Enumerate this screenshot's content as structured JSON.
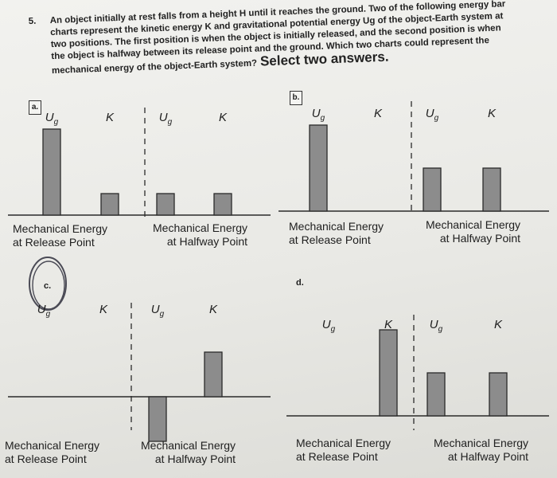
{
  "question": {
    "number": "5.",
    "lines": [
      "An object initially at rest falls from a height H until it reaches the ground. Two of the following energy bar",
      "charts represent the kinetic energy K and gravitational potential energy Ug of the object-Earth system at",
      "two positions. The first position is when the object is initially released, and the second position is when",
      "the object is halfway between its release point and the ground. Which two charts could represent the",
      "mechanical energy of the object-Earth system?"
    ],
    "select_label": "Select two answers."
  },
  "colors": {
    "bar_fill": "#8c8c8c",
    "bar_stroke": "#2a2a2a",
    "axis": "#2a2a2a",
    "annotation_pencil": "#4a4a55"
  },
  "chart_data": [
    {
      "type": "bar",
      "option": "a.",
      "option_boxed": true,
      "series": [
        {
          "categories": [
            "Ug",
            "K"
          ],
          "values": [
            4,
            1
          ],
          "caption": [
            "Mechanical Energy",
            "at Release Point"
          ]
        },
        {
          "categories": [
            "Ug",
            "K"
          ],
          "values": [
            1,
            1
          ],
          "caption": [
            "Mechanical Energy",
            "at Halfway Point"
          ]
        }
      ],
      "ylim": [
        -2,
        4.5
      ],
      "baseline": 0
    },
    {
      "type": "bar",
      "option": "b.",
      "option_boxed": true,
      "series": [
        {
          "categories": [
            "Ug",
            "K"
          ],
          "values": [
            4,
            0
          ],
          "caption": [
            "Mechanical Energy",
            "at Release Point"
          ]
        },
        {
          "categories": [
            "Ug",
            "K"
          ],
          "values": [
            2,
            2
          ],
          "caption": [
            "Mechanical Energy",
            "at Halfway Point"
          ]
        }
      ],
      "ylim": [
        -2,
        4.5
      ],
      "baseline": 0
    },
    {
      "type": "bar",
      "option": "c.",
      "option_boxed": false,
      "series": [
        {
          "categories": [
            "Ug",
            "K"
          ],
          "values": [
            0,
            0
          ],
          "caption": [
            "Mechanical Energy",
            "at Release Point"
          ]
        },
        {
          "categories": [
            "Ug",
            "K"
          ],
          "values": [
            -2,
            2
          ],
          "caption": [
            "Mechanical Energy",
            "at Halfway Point"
          ]
        }
      ],
      "ylim": [
        -2,
        4.5
      ],
      "baseline": 0
    },
    {
      "type": "bar",
      "option": "d.",
      "option_boxed": false,
      "series": [
        {
          "categories": [
            "Ug",
            "K"
          ],
          "values": [
            0,
            4
          ],
          "caption": [
            "Mechanical Energy",
            "at Release Point"
          ]
        },
        {
          "categories": [
            "Ug",
            "K"
          ],
          "values": [
            2,
            2
          ],
          "caption": [
            "Mechanical Energy",
            "at Halfway Point"
          ]
        }
      ],
      "ylim": [
        -2,
        4.5
      ],
      "baseline": 0
    }
  ]
}
